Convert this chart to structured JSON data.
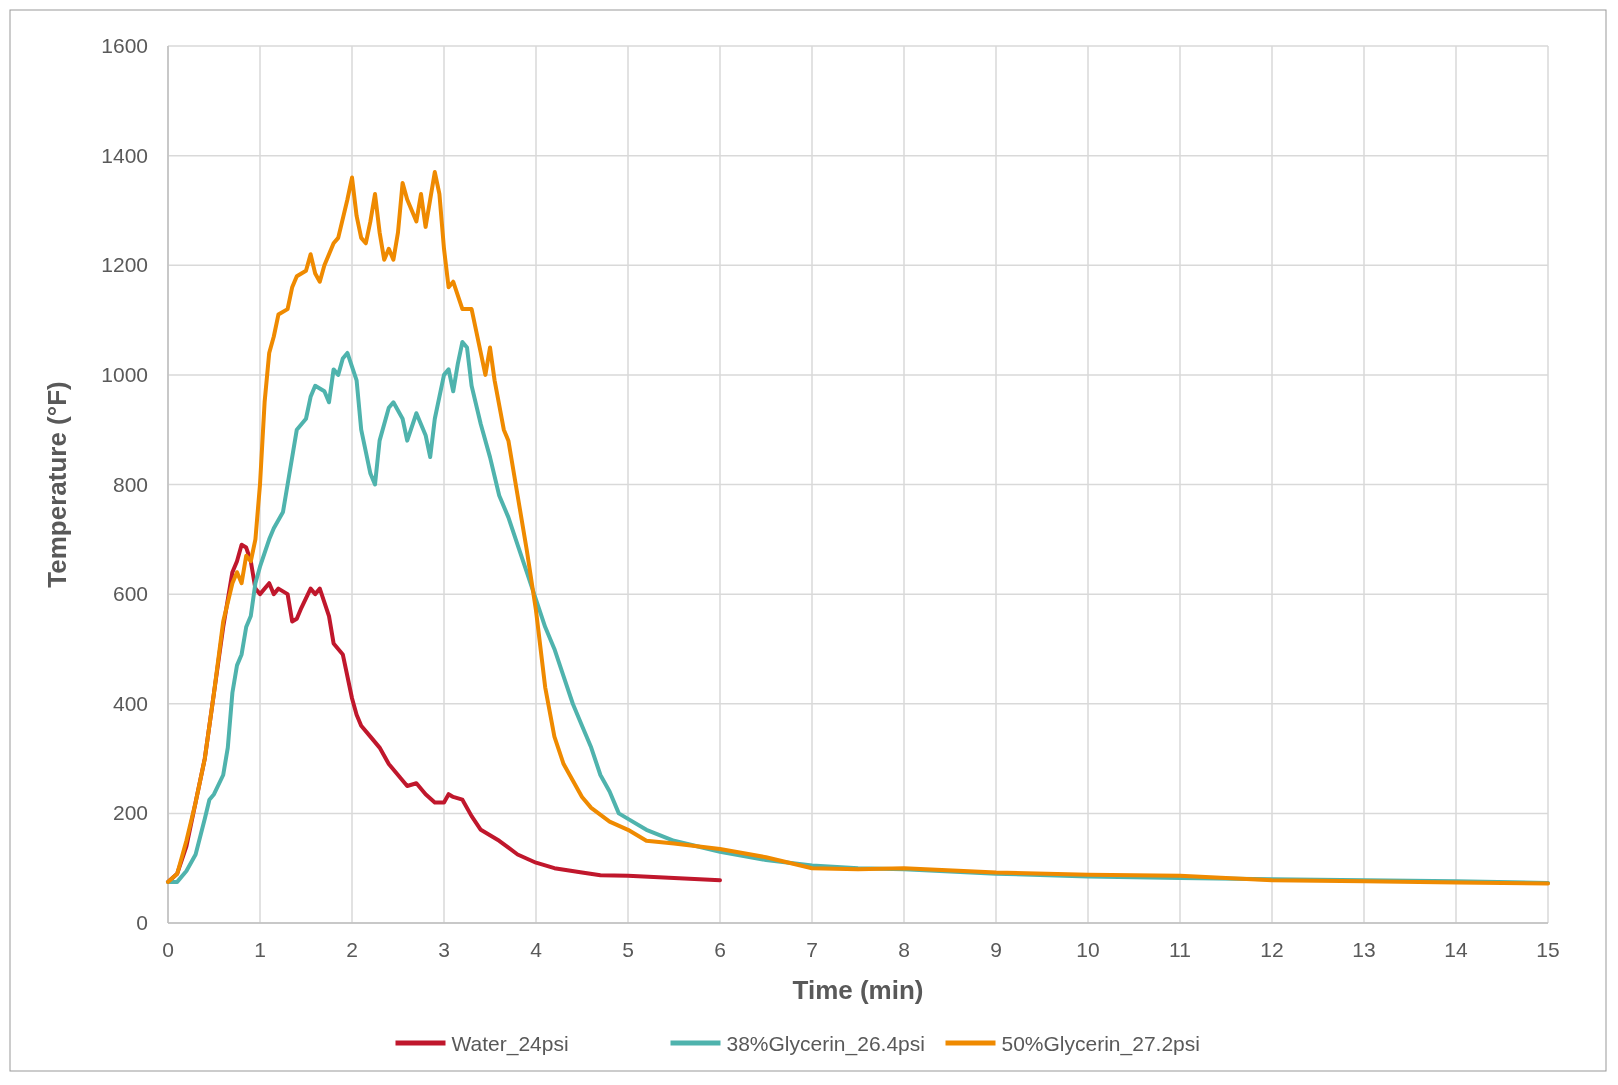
{
  "chart_data": {
    "type": "line",
    "xlabel": "Time (min)",
    "ylabel": "Temperature (°F)",
    "xlim": [
      0,
      15
    ],
    "xticks": [
      0,
      1,
      2,
      3,
      4,
      5,
      6,
      7,
      8,
      9,
      10,
      11,
      12,
      13,
      14,
      15
    ],
    "ylim": [
      0,
      1600
    ],
    "yticks": [
      0,
      200,
      400,
      600,
      800,
      1000,
      1200,
      1400,
      1600
    ],
    "grid": true,
    "legend": "bottom",
    "line_style": "solid",
    "series": [
      {
        "name": "Water_24psi",
        "color": "#c0172c",
        "x": [
          0,
          0.1,
          0.2,
          0.3,
          0.4,
          0.5,
          0.6,
          0.7,
          0.75,
          0.8,
          0.85,
          0.9,
          0.95,
          1.0,
          1.1,
          1.15,
          1.2,
          1.3,
          1.35,
          1.4,
          1.45,
          1.55,
          1.6,
          1.65,
          1.75,
          1.8,
          1.85,
          1.9,
          2.0,
          2.05,
          2.1,
          2.2,
          2.3,
          2.4,
          2.5,
          2.6,
          2.7,
          2.8,
          2.9,
          3.0,
          3.05,
          3.1,
          3.2,
          3.3,
          3.4,
          3.6,
          3.8,
          4.0,
          4.2,
          4.5,
          4.7,
          5.0,
          5.5,
          6.0
        ],
        "values": [
          75,
          90,
          140,
          220,
          300,
          420,
          540,
          640,
          660,
          690,
          685,
          660,
          610,
          600,
          620,
          600,
          610,
          600,
          550,
          555,
          575,
          610,
          600,
          610,
          560,
          510,
          500,
          490,
          410,
          380,
          360,
          340,
          320,
          290,
          270,
          250,
          255,
          235,
          220,
          220,
          235,
          230,
          225,
          195,
          170,
          150,
          125,
          110,
          100,
          92,
          87,
          86,
          82,
          78
        ]
      },
      {
        "name": "38%Glycerin_26.4psi",
        "color": "#4fb3ad",
        "x": [
          0,
          0.1,
          0.2,
          0.3,
          0.4,
          0.45,
          0.5,
          0.6,
          0.65,
          0.7,
          0.75,
          0.8,
          0.85,
          0.9,
          0.95,
          1.0,
          1.1,
          1.15,
          1.25,
          1.3,
          1.4,
          1.5,
          1.55,
          1.6,
          1.7,
          1.75,
          1.8,
          1.85,
          1.9,
          1.95,
          2.05,
          2.1,
          2.2,
          2.25,
          2.3,
          2.4,
          2.45,
          2.55,
          2.6,
          2.7,
          2.8,
          2.85,
          2.9,
          3.0,
          3.05,
          3.1,
          3.15,
          3.2,
          3.25,
          3.3,
          3.4,
          3.5,
          3.6,
          3.7,
          3.8,
          3.9,
          4.0,
          4.1,
          4.2,
          4.3,
          4.4,
          4.5,
          4.6,
          4.7,
          4.8,
          4.9,
          5.0,
          5.2,
          5.5,
          6.0,
          6.5,
          7.0,
          7.5,
          8,
          9,
          10,
          11,
          12,
          13,
          14,
          15
        ],
        "values": [
          75,
          75,
          95,
          125,
          190,
          225,
          235,
          270,
          320,
          420,
          470,
          490,
          540,
          560,
          620,
          650,
          700,
          720,
          750,
          800,
          900,
          920,
          960,
          980,
          970,
          950,
          1010,
          1000,
          1030,
          1040,
          990,
          900,
          820,
          800,
          880,
          940,
          950,
          920,
          880,
          930,
          890,
          850,
          920,
          1000,
          1010,
          970,
          1020,
          1060,
          1050,
          980,
          910,
          850,
          780,
          740,
          690,
          640,
          590,
          540,
          500,
          450,
          400,
          360,
          320,
          270,
          240,
          200,
          190,
          170,
          150,
          130,
          115,
          105,
          100,
          98,
          90,
          85,
          82,
          80,
          78,
          76,
          73
        ]
      },
      {
        "name": "50%Glycerin_27.2psi",
        "color": "#ef8a00",
        "x": [
          0,
          0.1,
          0.2,
          0.3,
          0.4,
          0.5,
          0.6,
          0.7,
          0.75,
          0.8,
          0.85,
          0.9,
          0.95,
          1.0,
          1.05,
          1.1,
          1.15,
          1.2,
          1.3,
          1.35,
          1.4,
          1.5,
          1.55,
          1.6,
          1.65,
          1.7,
          1.8,
          1.85,
          1.95,
          2.0,
          2.05,
          2.1,
          2.15,
          2.2,
          2.25,
          2.3,
          2.35,
          2.4,
          2.45,
          2.5,
          2.55,
          2.6,
          2.7,
          2.75,
          2.8,
          2.85,
          2.9,
          2.95,
          3.0,
          3.05,
          3.1,
          3.2,
          3.3,
          3.4,
          3.45,
          3.5,
          3.55,
          3.65,
          3.7,
          3.8,
          3.9,
          4.0,
          4.1,
          4.2,
          4.3,
          4.4,
          4.5,
          4.6,
          4.8,
          5.0,
          5.2,
          5.5,
          6.0,
          6.5,
          7,
          7.5,
          8,
          9,
          10,
          11,
          12,
          13,
          14,
          15
        ],
        "values": [
          75,
          90,
          150,
          220,
          300,
          420,
          550,
          620,
          640,
          620,
          670,
          660,
          700,
          800,
          950,
          1040,
          1070,
          1110,
          1120,
          1160,
          1180,
          1190,
          1220,
          1185,
          1170,
          1200,
          1240,
          1250,
          1320,
          1360,
          1290,
          1250,
          1240,
          1280,
          1330,
          1260,
          1210,
          1230,
          1210,
          1260,
          1350,
          1320,
          1280,
          1330,
          1270,
          1320,
          1370,
          1330,
          1230,
          1160,
          1170,
          1120,
          1120,
          1040,
          1000,
          1050,
          990,
          900,
          880,
          780,
          680,
          570,
          430,
          340,
          290,
          260,
          230,
          210,
          185,
          170,
          150,
          145,
          135,
          120,
          100,
          98,
          100,
          92,
          88,
          86,
          78,
          76,
          74,
          72
        ]
      }
    ]
  }
}
